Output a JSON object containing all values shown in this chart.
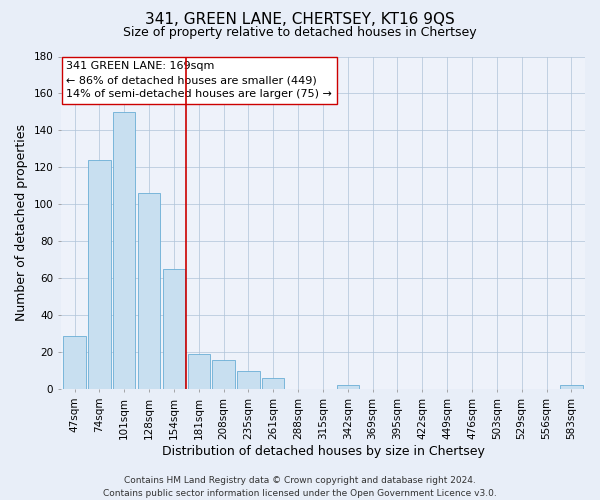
{
  "title": "341, GREEN LANE, CHERTSEY, KT16 9QS",
  "subtitle": "Size of property relative to detached houses in Chertsey",
  "xlabel": "Distribution of detached houses by size in Chertsey",
  "ylabel": "Number of detached properties",
  "bar_labels": [
    "47sqm",
    "74sqm",
    "101sqm",
    "128sqm",
    "154sqm",
    "181sqm",
    "208sqm",
    "235sqm",
    "261sqm",
    "288sqm",
    "315sqm",
    "342sqm",
    "369sqm",
    "395sqm",
    "422sqm",
    "449sqm",
    "476sqm",
    "503sqm",
    "529sqm",
    "556sqm",
    "583sqm"
  ],
  "bar_values": [
    29,
    124,
    150,
    106,
    65,
    19,
    16,
    10,
    6,
    0,
    0,
    2,
    0,
    0,
    0,
    0,
    0,
    0,
    0,
    0,
    2
  ],
  "bar_color": "#c8dff0",
  "bar_edge_color": "#6aaed6",
  "vline_x_idx": 5,
  "vline_color": "#cc0000",
  "ylim": [
    0,
    180
  ],
  "yticks": [
    0,
    20,
    40,
    60,
    80,
    100,
    120,
    140,
    160,
    180
  ],
  "annotation_title": "341 GREEN LANE: 169sqm",
  "annotation_line1": "← 86% of detached houses are smaller (449)",
  "annotation_line2": "14% of semi-detached houses are larger (75) →",
  "footer1": "Contains HM Land Registry data © Crown copyright and database right 2024.",
  "footer2": "Contains public sector information licensed under the Open Government Licence v3.0.",
  "bg_color": "#e8eef8",
  "plot_bg_color": "#eef2fa",
  "title_fontsize": 11,
  "subtitle_fontsize": 9,
  "axis_label_fontsize": 9,
  "tick_fontsize": 7.5,
  "annotation_fontsize": 8,
  "footer_fontsize": 6.5
}
